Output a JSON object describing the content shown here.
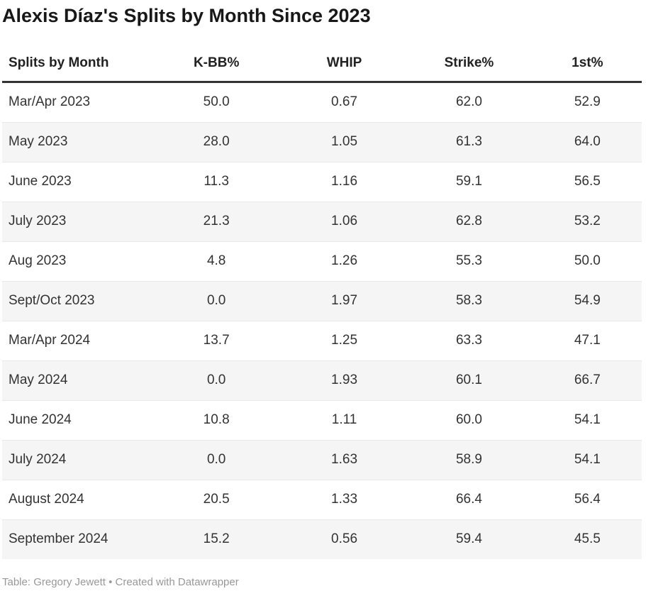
{
  "header": {
    "title": "Alexis Díaz's Splits by Month Since 2023"
  },
  "chart_data": {
    "type": "table",
    "title": "Alexis Díaz's Splits by Month Since 2023",
    "columns": [
      "Splits by Month",
      "K-BB%",
      "WHIP",
      "Strike%",
      "1st%"
    ],
    "rows": [
      [
        "Mar/Apr 2023",
        "50.0",
        "0.67",
        "62.0",
        "52.9"
      ],
      [
        "May 2023",
        "28.0",
        "1.05",
        "61.3",
        "64.0"
      ],
      [
        "June 2023",
        "11.3",
        "1.16",
        "59.1",
        "56.5"
      ],
      [
        "July 2023",
        "21.3",
        "1.06",
        "62.8",
        "53.2"
      ],
      [
        "Aug 2023",
        "4.8",
        "1.26",
        "55.3",
        "50.0"
      ],
      [
        "Sept/Oct 2023",
        "0.0",
        "1.97",
        "58.3",
        "54.9"
      ],
      [
        "Mar/Apr 2024",
        "13.7",
        "1.25",
        "63.3",
        "47.1"
      ],
      [
        "May 2024",
        "0.0",
        "1.93",
        "60.1",
        "66.7"
      ],
      [
        "June 2024",
        "10.8",
        "1.11",
        "60.0",
        "54.1"
      ],
      [
        "July 2024",
        "0.0",
        "1.63",
        "58.9",
        "54.1"
      ],
      [
        "August 2024",
        "20.5",
        "1.33",
        "66.4",
        "56.4"
      ],
      [
        "September 2024",
        "15.2",
        "0.56",
        "59.4",
        "45.5"
      ]
    ],
    "layout_hints": {
      "zebra_striping": true,
      "striped_rows": "even",
      "first_column_align": "left",
      "numeric_columns_align": "center",
      "header_rule": "3px solid dark under header"
    }
  },
  "footer": {
    "credit": "Table: Gregory Jewett • Created with Datawrapper"
  },
  "colors": {
    "background": "#ffffff",
    "title_text": "#181818",
    "header_text": "#222222",
    "cell_text": "#333333",
    "header_rule": "#333333",
    "row_stripe": "#f5f5f5",
    "row_divider": "#e9e9e9",
    "footer_text": "#989898"
  }
}
